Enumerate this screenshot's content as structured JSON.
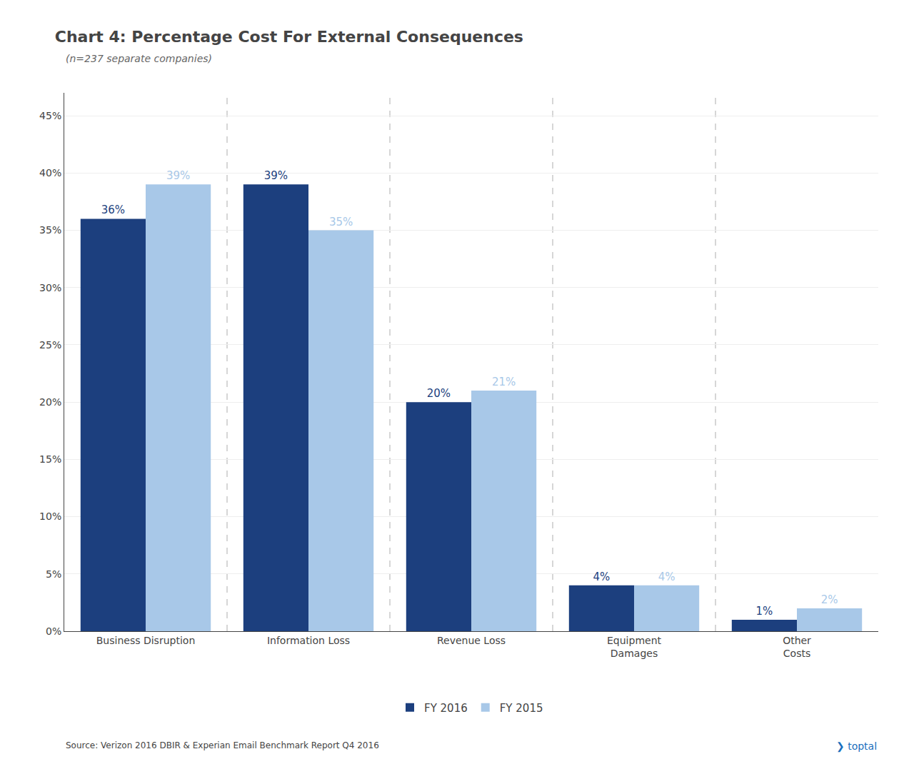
{
  "chart_data": {
    "type": "bar",
    "title": "Chart 4: Percentage Cost For External Consequences",
    "subtitle": "(n=237 separate companies)",
    "categories": [
      "Business Disruption",
      "Information Loss",
      "Revenue Loss",
      "Equipment\nDamages",
      "Other\nCosts"
    ],
    "series": [
      {
        "name": "FY 2016",
        "color": "#1c3f7e",
        "values": [
          36,
          39,
          20,
          4,
          1
        ],
        "value_labels": [
          "36%",
          "39%",
          "20%",
          "4%",
          "1%"
        ]
      },
      {
        "name": "FY 2015",
        "color": "#a8c8e8",
        "values": [
          39,
          35,
          21,
          4,
          2
        ],
        "value_labels": [
          "39%",
          "35%",
          "21%",
          "4%",
          "2%"
        ]
      }
    ],
    "ylim": [
      0,
      47
    ],
    "yticks": [
      {
        "value": 0,
        "label": "0%"
      },
      {
        "value": 5,
        "label": "5%"
      },
      {
        "value": 10,
        "label": "10%"
      },
      {
        "value": 15,
        "label": "15%"
      },
      {
        "value": 20,
        "label": "20%"
      },
      {
        "value": 25,
        "label": "25%"
      },
      {
        "value": 30,
        "label": "30%"
      },
      {
        "value": 35,
        "label": "35%"
      },
      {
        "value": 40,
        "label": "40%"
      },
      {
        "value": 45,
        "label": "45%"
      }
    ],
    "grid": true,
    "data_labels": true,
    "legend": "bottom",
    "annotations": [
      "Source: Verizon 2016 DBIR & Experian Email Benchmark Report Q4 2016",
      "❯ toptal"
    ]
  }
}
